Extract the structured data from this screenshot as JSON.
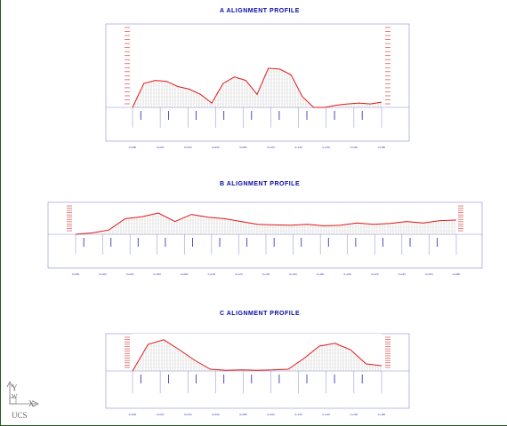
{
  "titles": {
    "a": "A ALIGNMENT PROFILE",
    "b": "B ALIGNMENT PROFILE",
    "c": "C ALIGNMENT PROFILE"
  },
  "ucs_icon": {
    "y_label": "Y",
    "w_label": "W",
    "x_label": "X",
    "ucs_label": "UCS"
  },
  "colors": {
    "profile_line": "#e01818",
    "frame": "#8a8ad8",
    "hatch": "#b8b8b8",
    "label_red": "#e06060",
    "label_blue": "#3a3ac0",
    "title": "#0a0aa6"
  },
  "profile_a": {
    "chainage_labels": [
      "0+000",
      "0+020",
      "0+040",
      "0+060",
      "0+080",
      "0+100",
      "0+120",
      "0+140",
      "0+160",
      "0+180"
    ],
    "ground_elevations": [
      0.0,
      0.55,
      0.62,
      0.6,
      0.48,
      0.42,
      0.3,
      0.1,
      0.55,
      0.7,
      0.62,
      0.3,
      0.9,
      0.88,
      0.75,
      0.25,
      0.0,
      0.0,
      0.05,
      0.08,
      0.1,
      0.08,
      0.12
    ]
  },
  "profile_b": {
    "chainage_labels": [
      "0+000",
      "0+020",
      "0+040",
      "0+060",
      "0+080",
      "0+100",
      "0+120",
      "0+140",
      "0+160",
      "0+180",
      "0+200",
      "0+220",
      "0+240",
      "0+260",
      "0+280"
    ],
    "ground_elevations": [
      0.0,
      0.05,
      0.15,
      0.55,
      0.62,
      0.75,
      0.45,
      0.7,
      0.6,
      0.55,
      0.45,
      0.35,
      0.33,
      0.32,
      0.35,
      0.3,
      0.32,
      0.4,
      0.35,
      0.38,
      0.45,
      0.4,
      0.48,
      0.5
    ]
  },
  "profile_c": {
    "chainage_labels": [
      "0+000",
      "0+020",
      "0+040",
      "0+060",
      "0+080",
      "0+100",
      "0+120",
      "0+140",
      "0+160",
      "0+180"
    ],
    "ground_elevations": [
      0.0,
      0.75,
      0.88,
      0.6,
      0.3,
      0.05,
      0.02,
      0.03,
      0.02,
      0.03,
      0.05,
      0.35,
      0.7,
      0.78,
      0.6,
      0.2,
      0.15
    ]
  }
}
